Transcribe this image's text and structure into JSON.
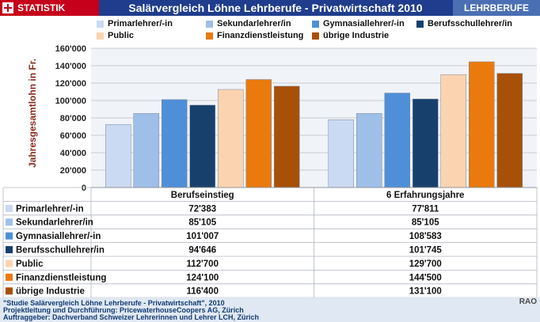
{
  "header": {
    "brand": "STATISTIK SCHWEIZ",
    "title": "Salärvergleich Löhne Lehrberufe - Privatwirtschaft 2010",
    "badge": "LEHRBERUFE"
  },
  "chart_data": {
    "type": "bar",
    "title": "Salärvergleich Löhne Lehrberufe - Privatwirtschaft 2010",
    "ylabel": "Jahresgesamtlohn in Fr.",
    "xlabel": "",
    "ylim": [
      0,
      160000
    ],
    "yticks": [
      "0",
      "20'000",
      "40'000",
      "60'000",
      "80'000",
      "100'000",
      "120'000",
      "140'000",
      "160'000"
    ],
    "grid": true,
    "legend": "top",
    "categories": [
      "Berufseinstieg",
      "6 Erfahrungsjahre"
    ],
    "series": [
      {
        "name": "Primarlehrer/-in",
        "color": "#c9daf2",
        "values": [
          72383,
          77811
        ],
        "labels": [
          "72'383",
          "77'811"
        ]
      },
      {
        "name": "Sekundarlehrer/in",
        "color": "#9ebfe8",
        "values": [
          85105,
          85105
        ],
        "labels": [
          "85'105",
          "85'105"
        ]
      },
      {
        "name": "Gymnasiallehrer/-in",
        "color": "#4f8fd8",
        "values": [
          101007,
          108583
        ],
        "labels": [
          "101'007",
          "108'583"
        ]
      },
      {
        "name": "Berufsschullehrer/in",
        "color": "#17406d",
        "values": [
          94646,
          101745
        ],
        "labels": [
          "94'646",
          "101'745"
        ]
      },
      {
        "name": "Public",
        "color": "#fbd3b0",
        "values": [
          112700,
          129700
        ],
        "labels": [
          "112'700",
          "129'700"
        ]
      },
      {
        "name": "Finanzdienstleistung",
        "color": "#ea7a0e",
        "values": [
          124100,
          144500
        ],
        "labels": [
          "124'100",
          "144'500"
        ]
      },
      {
        "name": "übrige Industrie",
        "color": "#a85008",
        "values": [
          116400,
          131100
        ],
        "labels": [
          "116'400",
          "131'100"
        ]
      }
    ]
  },
  "footer": {
    "line1": "\"Studie Salärvergleich Löhne Lehrberufe - Privatwirtschaft\", 2010",
    "line2": "Projektleitung und Durchführung: PricewaterhouseCoopers AG, Zürich",
    "line3": "Auftraggeber: Dachverband Schweizer Lehrerinnen und Lehrer LCH, Zürich",
    "rao": "RAO"
  }
}
